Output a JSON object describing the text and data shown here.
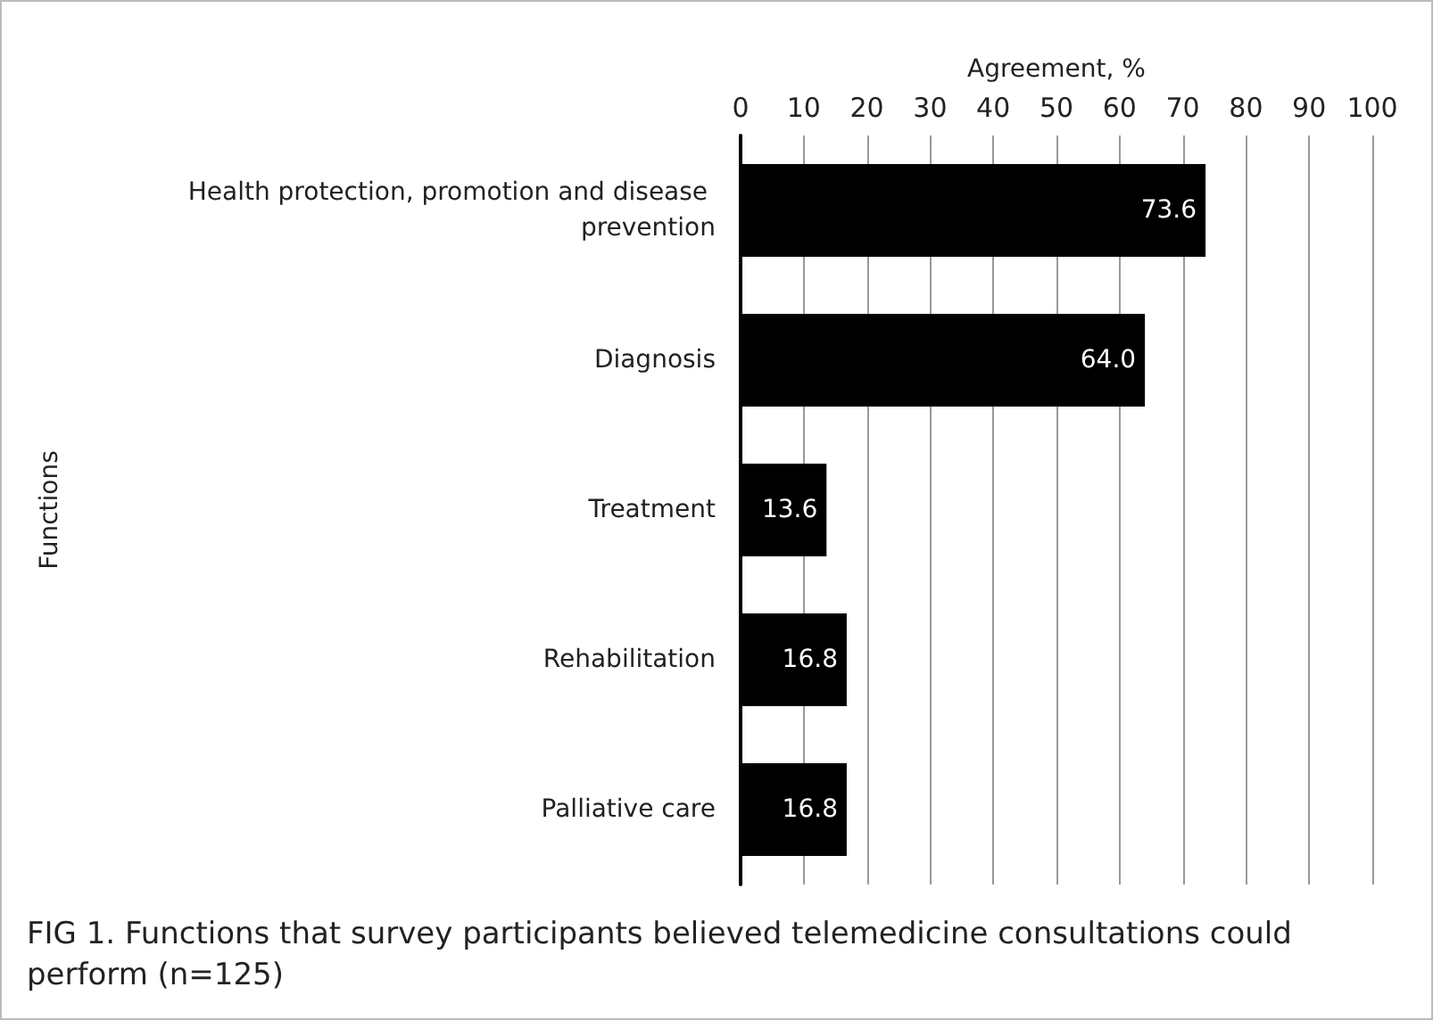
{
  "chart_data": {
    "type": "bar",
    "orientation": "horizontal",
    "xlabel": "Agreement, %",
    "ylabel": "Functions",
    "categories": [
      "Health protection, promotion and disease prevention",
      "Diagnosis",
      "Treatment",
      "Rehabilitation",
      "Palliative care"
    ],
    "values": [
      73.6,
      64.0,
      13.6,
      16.8,
      16.8
    ],
    "value_labels": [
      "73.6",
      "64.0",
      "13.6",
      "16.8",
      "16.8"
    ],
    "color": "#000000",
    "xlim": [
      0,
      100
    ],
    "xticks": [
      0,
      10,
      20,
      30,
      40,
      50,
      60,
      70,
      80,
      90,
      100
    ],
    "grid": "x",
    "annotations": [
      "FIG 1.  Functions that survey participants believed telemedicine consultations could perform (n=125)"
    ]
  }
}
